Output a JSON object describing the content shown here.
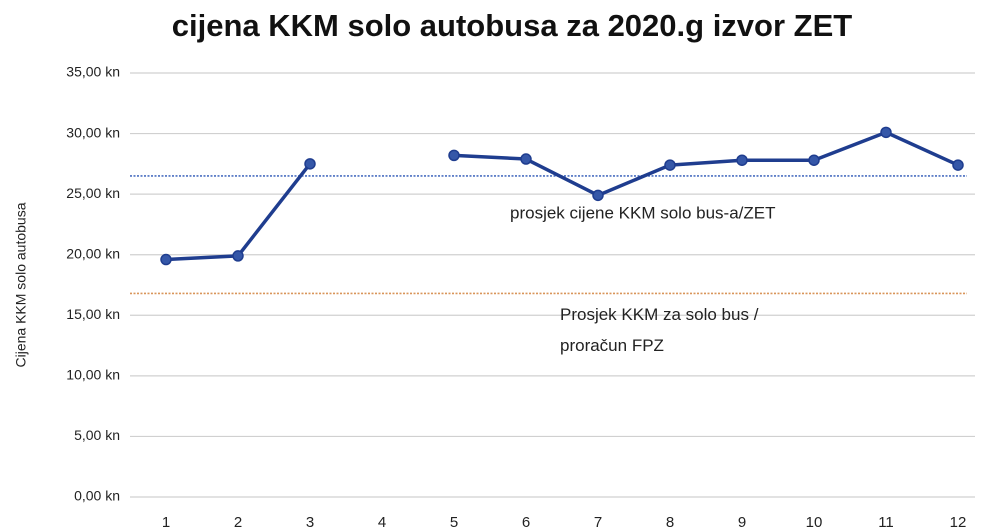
{
  "chart_data": {
    "type": "line",
    "title": "cijena KKM solo autobusa za 2020.g izvor ZET",
    "y_label": "Cijena KKM solo autobusa",
    "categories": [
      "1",
      "2",
      "3",
      "4",
      "5",
      "6",
      "7",
      "8",
      "9",
      "10",
      "11",
      "12"
    ],
    "series": [
      {
        "name": "cijena KKM",
        "color": "#1f3d8f",
        "values": [
          19.6,
          19.9,
          27.5,
          null,
          28.2,
          27.9,
          24.9,
          27.4,
          27.8,
          27.8,
          30.1,
          27.4
        ]
      }
    ],
    "ylim": [
      0,
      35
    ],
    "yticks": [
      {
        "value": 0,
        "label": "0,00 kn"
      },
      {
        "value": 5,
        "label": "5,00 kn"
      },
      {
        "value": 10,
        "label": "10,00 kn"
      },
      {
        "value": 15,
        "label": "15,00 kn"
      },
      {
        "value": 20,
        "label": "20,00 kn"
      },
      {
        "value": 25,
        "label": "25,00 kn"
      },
      {
        "value": 30,
        "label": "30,00 kn"
      },
      {
        "value": 35,
        "label": "35,00 kn"
      }
    ],
    "grid": true,
    "reference_lines": [
      {
        "value": 26.5,
        "color": "#4a6fc0",
        "label_lines": [
          "prosjek cijene KKM solo bus-a/ZET"
        ]
      },
      {
        "value": 16.8,
        "color": "#d9955a",
        "label_lines": [
          "Prosjek KKM za solo bus /",
          "proračun FPZ"
        ]
      }
    ]
  }
}
